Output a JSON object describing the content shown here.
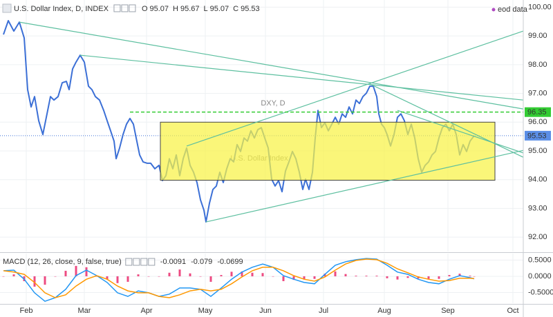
{
  "chart_data": [
    {
      "type": "line",
      "title": "U.S. Dollar Index, D, INDEX",
      "ohlc": [
        {
          "label": "O",
          "value": 95.07
        },
        {
          "label": "H",
          "value": 95.67
        },
        {
          "label": "L",
          "value": 95.07
        },
        {
          "label": "C",
          "value": 95.53
        }
      ],
      "source": "eod data",
      "watermark": [
        "DXY, D",
        "U.S. Dollar Index"
      ],
      "x": [
        1,
        2.4,
        4,
        5.6,
        7,
        8,
        9,
        10,
        11.2,
        12.4,
        13.6,
        14.6,
        15.6,
        16.8,
        18,
        19.2,
        20,
        21,
        22,
        23.2,
        24.4,
        25.6,
        26.6,
        27.6,
        28.8,
        30,
        31,
        32,
        33,
        33.6,
        34.6,
        35.6,
        36.6,
        37.6,
        38.6,
        39.4,
        40.4,
        41.4,
        42.6,
        43.6,
        44.8,
        46,
        47,
        48,
        49,
        50,
        51,
        52,
        53,
        54,
        55,
        56,
        57,
        58,
        59,
        59.6,
        60.6,
        61.6,
        62.6,
        63.6,
        64.6,
        65.6,
        66.6,
        67.6,
        68.6,
        69.6,
        70.6,
        71.6,
        72.6,
        73.6,
        74.6,
        75.6,
        76.6,
        77.6,
        78.6,
        79.6,
        80.6,
        81.6,
        82.6,
        83.6,
        84.6,
        85.6,
        86.6,
        87.6,
        88.4,
        89.4,
        90.4,
        91.2,
        92,
        93,
        94,
        95,
        96,
        97,
        98,
        99,
        100,
        101,
        102,
        103,
        104,
        105,
        106,
        107,
        108,
        109,
        109.6,
        110.4,
        111.2,
        112,
        113,
        114,
        115,
        116,
        117,
        118,
        119,
        120,
        121,
        122,
        123,
        124,
        125,
        126,
        127,
        128,
        129,
        130,
        131,
        132,
        133,
        134,
        135,
        136,
        137.2
      ],
      "series": [
        {
          "color": "#3b6fd6",
          "values": [
            99.05,
            99.53,
            99.17,
            99.48,
            98.93,
            97.13,
            96.53,
            96.89,
            96.05,
            95.57,
            96.29,
            96.89,
            96.77,
            96.89,
            97.37,
            97.42,
            97.13,
            97.85,
            98.09,
            98.33,
            98.09,
            97.25,
            97.13,
            96.89,
            96.77,
            96.41,
            96.05,
            95.7,
            95.34,
            94.73,
            95.1,
            95.57,
            95.93,
            96.13,
            95.93,
            95.45,
            94.86,
            94.62,
            94.57,
            94.57,
            94.38,
            94.5,
            93.97,
            94.14,
            94.73,
            94.38,
            94.86,
            94.14,
            94.73,
            95.1,
            94.5,
            94.26,
            93.9,
            93.3,
            92.94,
            92.53,
            93.18,
            93.66,
            93.78,
            94.26,
            93.9,
            94.38,
            94.73,
            94.62,
            95.22,
            94.98,
            95.45,
            95.34,
            95.7,
            95.45,
            95.74,
            95.81,
            95.45,
            95.1,
            94.02,
            93.78,
            93.97,
            93.58,
            94.3,
            94.62,
            94.98,
            94.73,
            94.26,
            93.66,
            94.02,
            93.66,
            94.26,
            95.45,
            96.41,
            95.81,
            95.98,
            95.7,
            95.93,
            96.17,
            95.93,
            96.29,
            96.17,
            96.53,
            96.29,
            96.77,
            96.65,
            96.89,
            97.01,
            97.25,
            97.25,
            96.89,
            96.29,
            95.93,
            95.81,
            95.57,
            95.17,
            95.57,
            96.17,
            96.29,
            96.05,
            95.57,
            95.93,
            95.45,
            94.73,
            94.26,
            94.5,
            94.62,
            94.86,
            94.98,
            95.45,
            95.81,
            95.93,
            95.7,
            95.93,
            95.57,
            94.86,
            95.22,
            94.98,
            95.34,
            95.53
          ]
        }
      ],
      "xlim": [
        0,
        151.4
      ],
      "xticks": [
        {
          "value": 7.6,
          "label": "Feb"
        },
        {
          "value": 24.4,
          "label": "Mar"
        },
        {
          "value": 42.4,
          "label": "Apr"
        },
        {
          "value": 59.4,
          "label": "May"
        },
        {
          "value": 76.8,
          "label": "Jun"
        },
        {
          "value": 93.6,
          "label": "Jul"
        },
        {
          "value": 111.2,
          "label": "Aug"
        },
        {
          "value": 129.6,
          "label": "Sep"
        },
        {
          "value": 148.4,
          "label": "Oct"
        }
      ],
      "ylim": [
        91.5,
        100.25
      ],
      "yticks": [
        {
          "value": 92,
          "label": "92.00"
        },
        {
          "value": 93,
          "label": "93.00"
        },
        {
          "value": 94,
          "label": "94.00"
        },
        {
          "value": 95,
          "label": "95.00"
        },
        {
          "value": 96,
          "label": "96.00"
        },
        {
          "value": 97,
          "label": "97.00"
        },
        {
          "value": 98,
          "label": "98.00"
        },
        {
          "value": 99,
          "label": "99.00"
        },
        {
          "value": 100,
          "label": "100.00"
        }
      ],
      "grid": true,
      "price_line": {
        "value": 95.53,
        "color": "#3b6fd6"
      },
      "level": {
        "value": 96.35,
        "x": 37.6,
        "color": "#33cc33"
      },
      "rectangle": {
        "x": [
          46.4,
          143.2
        ],
        "y": [
          93.98,
          96.0
        ],
        "color": "#f8f245"
      },
      "trendline_color": "#5cbf9f",
      "trendlines": [
        {
          "x": [
            5.6,
            151.4
          ],
          "y": [
            99.48,
            96.46
          ]
        },
        {
          "x": [
            23.2,
            151.4
          ],
          "y": [
            98.33,
            96.77
          ]
        },
        {
          "x": [
            107,
            151.4
          ],
          "y": [
            97.33,
            94.78
          ]
        },
        {
          "x": [
            59.6,
            151.4
          ],
          "y": [
            92.53,
            95.02
          ]
        },
        {
          "x": [
            54,
            151.4
          ],
          "y": [
            95.17,
            99.17
          ]
        },
        {
          "x": [
            115,
            151.4
          ],
          "y": [
            96.41,
            94.93
          ]
        }
      ]
    },
    {
      "type": "macd",
      "title": "MACD (12, 26, close, 9, false, true)",
      "x": [
        1,
        4,
        7,
        10,
        13,
        16,
        19,
        22,
        25,
        28,
        31,
        34,
        37,
        40,
        43,
        46,
        49,
        52,
        55,
        58,
        61,
        64,
        67,
        70,
        73,
        76,
        79,
        82,
        85,
        88,
        91,
        94,
        97,
        100,
        103,
        106,
        109,
        112,
        115,
        118,
        121,
        124,
        127,
        130,
        133,
        136,
        137.2
      ],
      "current": [
        {
          "value": -0.0091,
          "color": "#e91e63"
        },
        {
          "value": -0.079,
          "color": "#2196f3"
        },
        {
          "value": -0.0699,
          "color": "#ff9800"
        }
      ],
      "histogram": {
        "color": "#e91e63",
        "values": [
          0,
          0.06,
          -0.15,
          -0.32,
          -0.26,
          0,
          0.17,
          0.32,
          0.28,
          0,
          -0.1,
          -0.21,
          -0.17,
          0.06,
          0,
          0,
          0.11,
          0.21,
          0.09,
          0,
          -0.17,
          0.04,
          0.14,
          0.15,
          0.11,
          0.1,
          0,
          -0.15,
          -0.11,
          -0.1,
          -0.08,
          0.08,
          0.15,
          0.07,
          0.02,
          0.02,
          0.02,
          -0.06,
          -0.1,
          -0.05,
          -0.07,
          -0.1,
          -0.08,
          0.04,
          0.08,
          0.02,
          -0.01
        ]
      },
      "series": [
        {
          "color": "#2196f3",
          "values": [
            0.17,
            0.19,
            -0.09,
            -0.51,
            -0.77,
            -0.66,
            -0.4,
            0.02,
            0.19,
            0.02,
            -0.19,
            -0.51,
            -0.62,
            -0.45,
            -0.51,
            -0.62,
            -0.55,
            -0.36,
            -0.36,
            -0.4,
            -0.62,
            -0.36,
            -0.09,
            0.13,
            0.28,
            0.38,
            0.28,
            0.02,
            -0.09,
            -0.19,
            -0.23,
            0.06,
            0.34,
            0.45,
            0.51,
            0.55,
            0.53,
            0.34,
            0.13,
            0.06,
            -0.09,
            -0.19,
            -0.23,
            -0.09,
            0.02,
            -0.04,
            -0.08
          ]
        },
        {
          "color": "#ff9800",
          "values": [
            0.17,
            0.13,
            0.06,
            -0.19,
            -0.51,
            -0.66,
            -0.57,
            -0.3,
            -0.09,
            0.02,
            -0.09,
            -0.3,
            -0.45,
            -0.51,
            -0.51,
            -0.62,
            -0.66,
            -0.57,
            -0.45,
            -0.4,
            -0.45,
            -0.4,
            -0.23,
            -0.02,
            0.17,
            0.28,
            0.28,
            0.17,
            0.02,
            -0.09,
            -0.15,
            -0.02,
            0.19,
            0.38,
            0.49,
            0.53,
            0.51,
            0.4,
            0.23,
            0.11,
            -0.02,
            -0.09,
            -0.15,
            -0.13,
            -0.06,
            -0.06,
            -0.07
          ]
        }
      ],
      "xlim": [
        0,
        151.4
      ],
      "ylim": [
        -0.83,
        0.7
      ],
      "yticks": [
        {
          "value": 0.5,
          "label": "0.5000"
        },
        {
          "value": 0,
          "label": "0.0000"
        },
        {
          "value": -0.5,
          "label": "-0.5000"
        }
      ]
    }
  ]
}
